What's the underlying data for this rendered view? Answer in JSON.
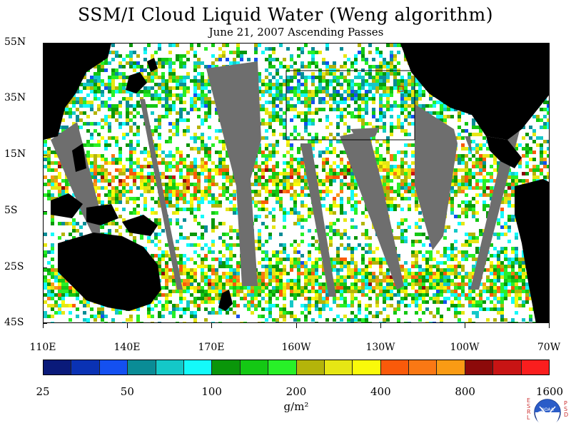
{
  "title": "SSM/I Cloud Liquid Water (Weng algorithm)",
  "subtitle": "June 21, 2007  Ascending Passes",
  "map": {
    "lat_labels": [
      "55N",
      "35N",
      "15N",
      "5S",
      "25S",
      "45S"
    ],
    "lon_labels": [
      "110E",
      "140E",
      "170E",
      "160W",
      "130W",
      "100W",
      "70W"
    ],
    "colors": {
      "ocean": "#ffffff",
      "land": "#000000",
      "no_data_swath": "#6e6e6e"
    }
  },
  "legend": {
    "tick_labels": [
      "25",
      "50",
      "100",
      "200",
      "400",
      "800",
      "1600"
    ],
    "units": "g/m²",
    "colors": [
      "#0a1a7a",
      "#0a32b4",
      "#1450f0",
      "#0a8c96",
      "#14c8c8",
      "#14fafa",
      "#0a960a",
      "#14c814",
      "#28f028",
      "#b4b40a",
      "#e6e614",
      "#fafa0a",
      "#fa5a0a",
      "#fa7814",
      "#fa9b14",
      "#8c0a0a",
      "#c81414",
      "#fa1e1e"
    ]
  },
  "logo": {
    "left_text": "ESRL",
    "right_text": "PSD",
    "center_text": "NOAA"
  }
}
